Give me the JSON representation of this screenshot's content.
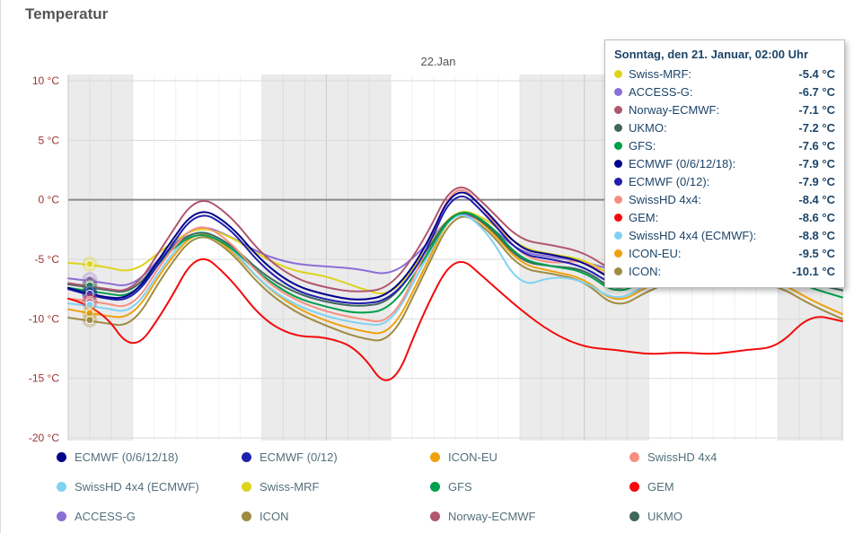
{
  "title": "Temperatur",
  "colors": {
    "axis_text": "#993333",
    "night_band": "#ebebeb",
    "grid_minor": "#ececec",
    "grid_major": "#c9c9c9",
    "grid_horizontal": "#d9d9d9",
    "zero_line": "#8a8a8a",
    "title_text": "#555555",
    "day_label_text": "#555555",
    "tooltip_text": "#1c4468",
    "legend_text": "#54707c"
  },
  "tooltip": {
    "title": "Sonntag, den 21. Januar, 02:00 Uhr",
    "rows": [
      {
        "name": "Swiss-MRF",
        "value": "-5.4 °C"
      },
      {
        "name": "ACCESS-G",
        "value": "-6.7 °C"
      },
      {
        "name": "Norway-ECMWF",
        "value": "-7.1 °C"
      },
      {
        "name": "UKMO",
        "value": "-7.2 °C"
      },
      {
        "name": "GFS",
        "value": "-7.6 °C"
      },
      {
        "name": "ECMWF (0/6/12/18)",
        "value": "-7.9 °C"
      },
      {
        "name": "ECMWF (0/12)",
        "value": "-7.9 °C"
      },
      {
        "name": "SwissHD 4x4",
        "value": "-8.4 °C"
      },
      {
        "name": "GEM",
        "value": "-8.6 °C"
      },
      {
        "name": "SwissHD 4x4 (ECMWF)",
        "value": "-8.8 °C"
      },
      {
        "name": "ICON-EU",
        "value": "-9.5 °C"
      },
      {
        "name": "ICON",
        "value": "-10.1 °C"
      }
    ]
  },
  "legend": {
    "items": [
      "ECMWF (0/6/12/18)",
      "ECMWF (0/12)",
      "ICON-EU",
      "SwissHD 4x4",
      "SwissHD 4x4 (ECMWF)",
      "Swiss-MRF",
      "GFS",
      "GEM",
      "ACCESS-G",
      "ICON",
      "Norway-ECMWF",
      "UKMO"
    ]
  },
  "chart_data": {
    "type": "line",
    "title": "Temperatur",
    "top_label": "22.Jan",
    "xlabel": "",
    "ylabel": "Temperatur",
    "y_unit": "°C",
    "y_ticks": [
      10,
      5,
      0,
      -5,
      -10,
      -15,
      -20
    ],
    "ylim": [
      -20,
      10
    ],
    "x_range": [
      0,
      72
    ],
    "x_hours": [
      0,
      3,
      6,
      9,
      12,
      15,
      18,
      21,
      24,
      27,
      30,
      33,
      36,
      39,
      42,
      45,
      48,
      51,
      54,
      57,
      60,
      63,
      66,
      69,
      72
    ],
    "night_bands": [
      [
        0,
        6
      ],
      [
        18,
        30
      ],
      [
        42,
        54
      ],
      [
        66,
        72
      ]
    ],
    "hover_time": 2,
    "grid": true,
    "series": [
      {
        "name": "ACCESS-G",
        "color": "#8b6fd6",
        "values": [
          -6.6,
          -6.9,
          -7.4,
          -4.4,
          -2.0,
          -3.0,
          -4.6,
          -5.4,
          -5.6,
          -5.8,
          -6.4,
          -4.2,
          -0.8,
          -2.0,
          -4.4,
          -4.8,
          -5.2,
          -6.0,
          -5.0,
          -4.4,
          -4.0,
          -4.4,
          -3.6,
          -4.0,
          -4.4
        ]
      },
      {
        "name": "Swiss-MRF",
        "color": "#ddd41c",
        "values": [
          -5.3,
          -5.5,
          -6.2,
          -4.0,
          -2.2,
          -3.0,
          -4.8,
          -6.0,
          -6.4,
          -7.4,
          -8.2,
          -4.6,
          -0.6,
          -1.6,
          -4.0,
          -4.6,
          -5.0,
          -6.6,
          -5.2,
          -4.4,
          -5.0,
          -4.6,
          -3.8,
          -4.2,
          -4.6
        ]
      },
      {
        "name": "ICON",
        "color": "#9e8c42",
        "values": [
          -9.9,
          -10.3,
          -10.7,
          -6.0,
          -2.6,
          -4.2,
          -7.4,
          -9.4,
          -10.6,
          -11.6,
          -12.0,
          -6.4,
          -0.8,
          -2.4,
          -5.8,
          -6.2,
          -6.8,
          -9.2,
          -7.6,
          -6.6,
          -7.4,
          -7.0,
          -7.2,
          -8.8,
          -10.0
        ]
      },
      {
        "name": "ICON-EU",
        "color": "#efa00b",
        "values": [
          -9.2,
          -9.7,
          -10.0,
          -5.5,
          -2.4,
          -4.0,
          -7.0,
          -9.0,
          -10.2,
          -11.0,
          -11.4,
          -6.0,
          -0.4,
          -2.2,
          -5.4,
          -6.0,
          -6.6,
          -8.8,
          -7.2,
          -6.2,
          -7.0,
          -6.6,
          -6.8,
          -8.4,
          -9.6
        ]
      },
      {
        "name": "SwissHD 4x4 (ECMWF)",
        "color": "#7fd2f3",
        "values": [
          -8.7,
          -9.0,
          -9.6,
          -5.2,
          -2.2,
          -3.8,
          -7.0,
          -8.8,
          -9.8,
          -10.4,
          -10.6,
          -5.4,
          -0.6,
          -2.6,
          -7.4,
          -6.4,
          -6.8,
          -8.6,
          -7.0,
          -6.0,
          -6.8,
          -6.4,
          -6.0,
          -7.0,
          -7.6
        ]
      },
      {
        "name": "UKMO",
        "color": "#40685d",
        "values": [
          -7.1,
          -7.5,
          -7.9,
          -4.4,
          -2.4,
          -3.6,
          -6.2,
          -7.8,
          -8.6,
          -9.0,
          -8.6,
          -4.8,
          -0.6,
          -2.0,
          -5.2,
          -5.6,
          -5.8,
          -7.8,
          -6.4,
          -5.4,
          -6.2,
          -5.8,
          -6.0,
          -7.0,
          -7.6
        ]
      },
      {
        "name": "GFS",
        "color": "#009f4d",
        "values": [
          -7.4,
          -7.8,
          -8.2,
          -4.6,
          -2.6,
          -3.8,
          -6.4,
          -8.2,
          -9.0,
          -9.6,
          -9.2,
          -5.2,
          -0.6,
          -1.8,
          -5.0,
          -5.6,
          -6.0,
          -8.0,
          -6.6,
          -5.6,
          -6.4,
          -6.0,
          -6.2,
          -7.4,
          -8.2
        ]
      },
      {
        "name": "SwissHD 4x4",
        "color": "#f68f83",
        "values": [
          -8.3,
          -8.6,
          -9.2,
          -4.8,
          -1.8,
          -3.4,
          -6.6,
          -8.4,
          -9.4,
          -10.0,
          -10.4,
          -5.0,
          1.9,
          -1.2,
          -4.6,
          -5.4,
          -5.0,
          -7.0,
          -5.6,
          -4.8,
          -5.6,
          -5.0,
          -4.6,
          -5.2,
          -5.6
        ]
      },
      {
        "name": "Norway-ECMWF",
        "color": "#b0566f",
        "values": [
          -7.0,
          -7.4,
          -7.8,
          -3.6,
          0.5,
          -1.2,
          -4.6,
          -6.6,
          -7.4,
          -7.8,
          -7.4,
          -3.6,
          1.9,
          -0.6,
          -3.4,
          -3.8,
          -4.4,
          -6.2,
          -4.6,
          -3.4,
          -4.2,
          -3.4,
          -3.0,
          -4.2,
          -5.0
        ]
      },
      {
        "name": "ECMWF (0/12)",
        "color": "#1f1fae",
        "values": [
          -7.5,
          -8.3,
          -8.5,
          -4.6,
          -0.8,
          -2.3,
          -5.6,
          -7.6,
          -8.4,
          -8.8,
          -8.4,
          -5.0,
          1.2,
          -1.4,
          -4.6,
          -5.0,
          -5.6,
          -7.4,
          -5.8,
          -4.6,
          -5.4,
          -4.8,
          -4.2,
          -5.4,
          -6.4
        ]
      },
      {
        "name": "ECMWF (0/6/12/18)",
        "color": "#00008c",
        "values": [
          -7.4,
          -8.2,
          -8.3,
          -4.2,
          -0.5,
          -2.0,
          -5.2,
          -7.2,
          -8.0,
          -8.5,
          -8.0,
          -4.5,
          1.5,
          -1.0,
          -4.2,
          -4.6,
          -5.2,
          -7.0,
          -5.4,
          -4.2,
          -5.0,
          -4.4,
          -3.8,
          -5.0,
          -6.0
        ]
      },
      {
        "name": "GEM",
        "color": "#f30b0b",
        "values": [
          -8.3,
          -9.0,
          -13.0,
          -9.2,
          -4.2,
          -6.5,
          -10.0,
          -11.5,
          -11.5,
          -12.5,
          -16.4,
          -9.5,
          -4.4,
          -6.8,
          -9.2,
          -11.2,
          -12.4,
          -12.6,
          -13.0,
          -12.8,
          -13.0,
          -12.6,
          -12.4,
          -9.6,
          -10.2
        ]
      }
    ]
  }
}
